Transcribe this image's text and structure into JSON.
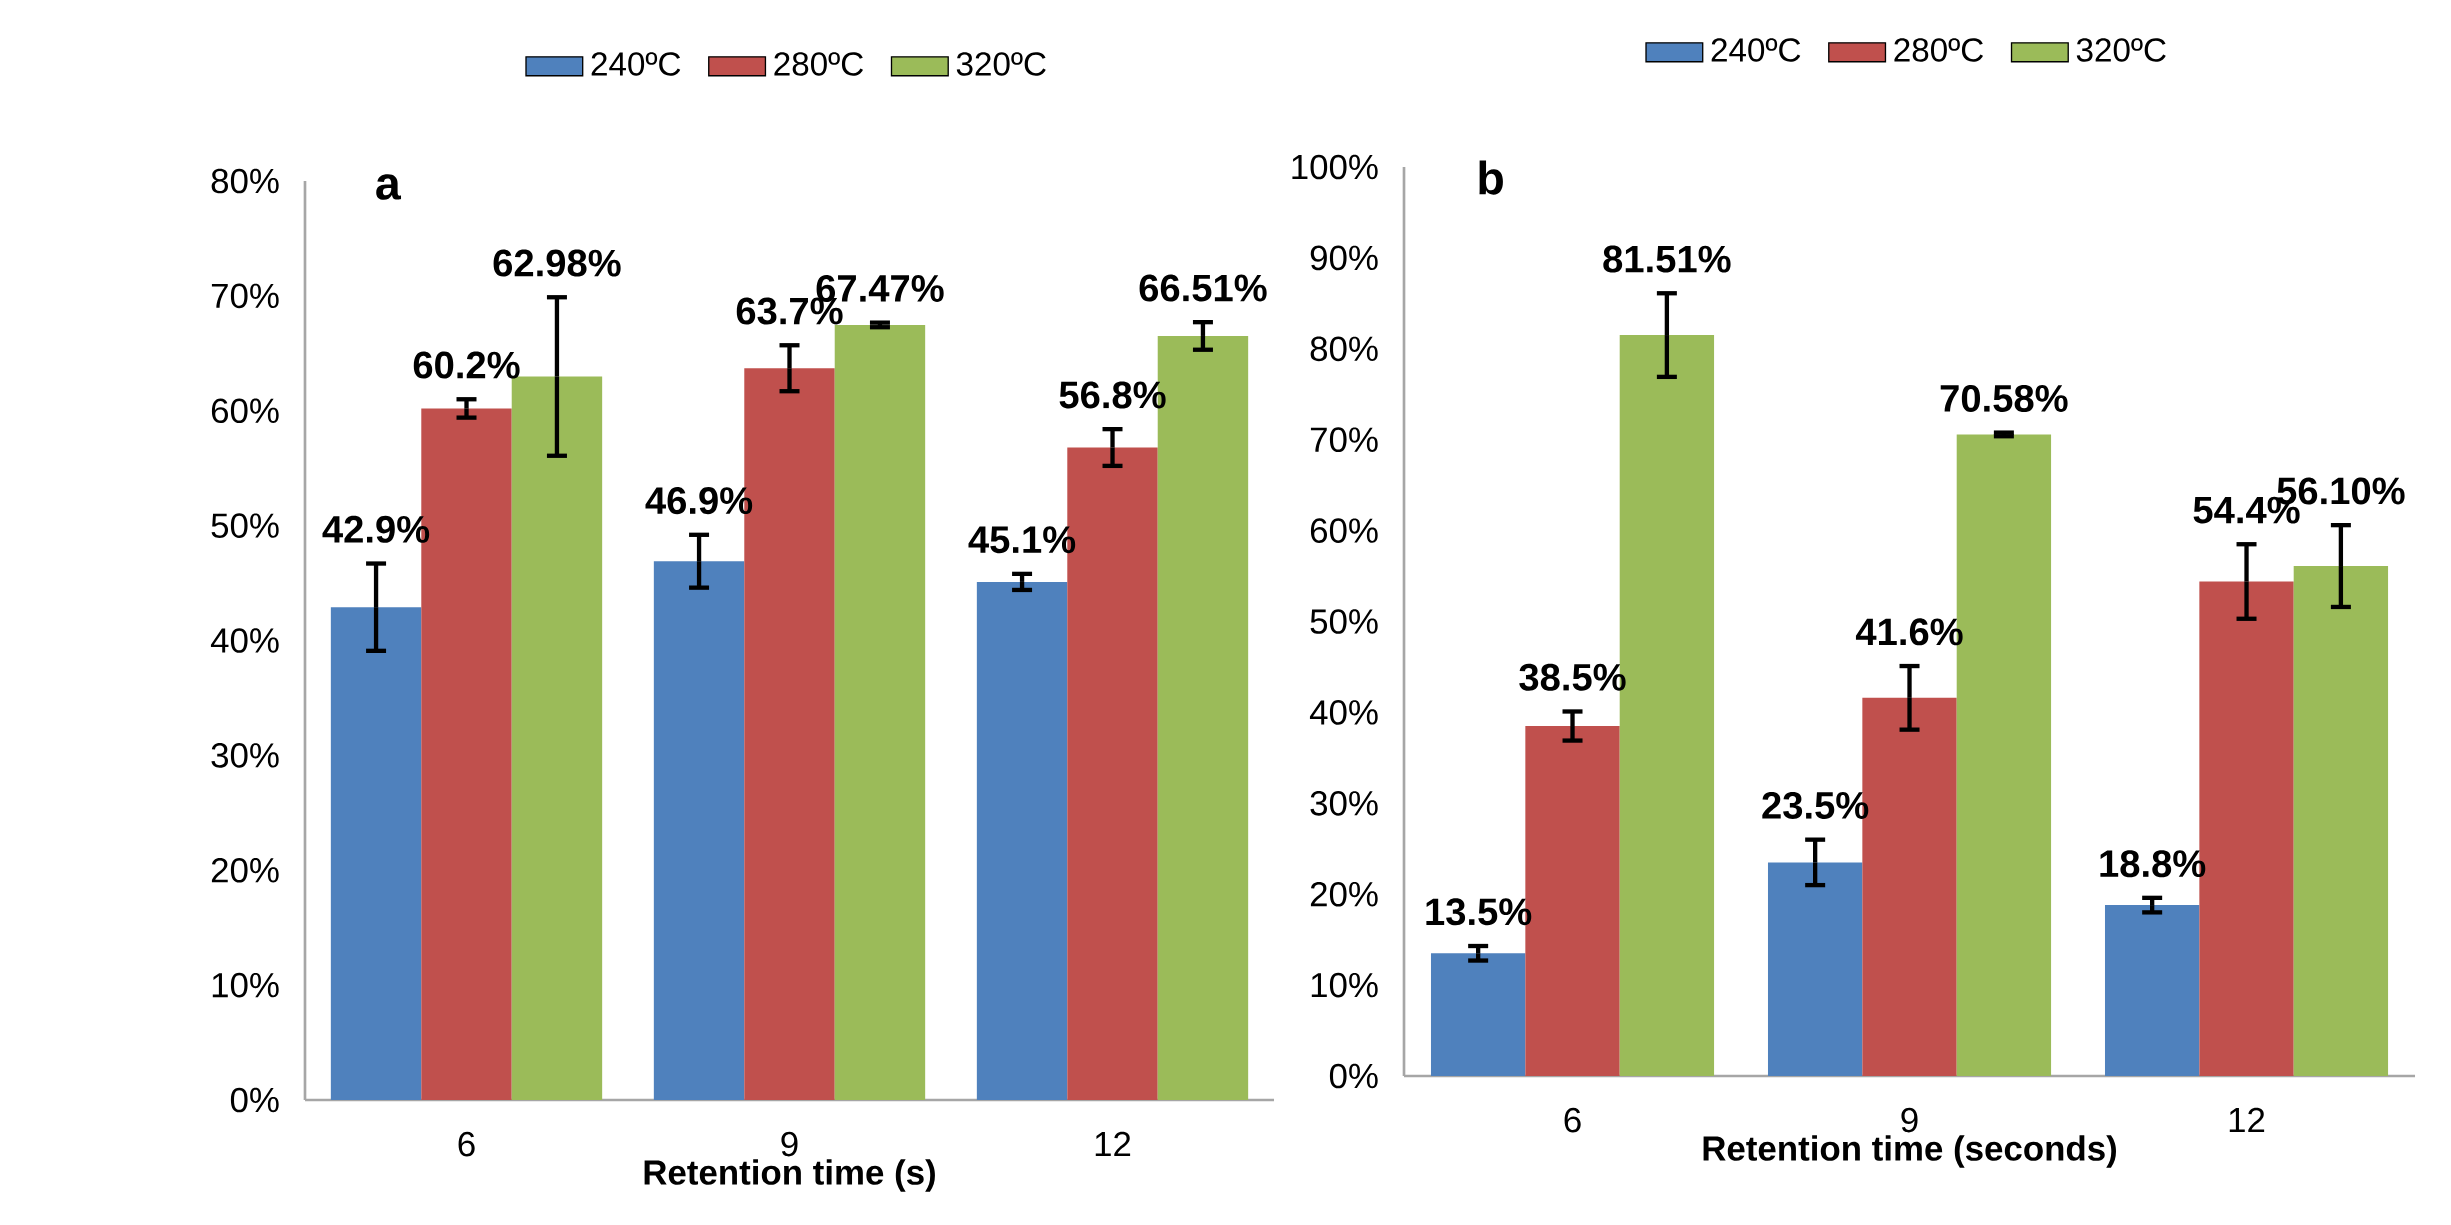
{
  "chart_data": [
    {
      "type": "bar",
      "title": "a",
      "xlabel": "Retention time (s)",
      "categories": [
        "6",
        "9",
        "12"
      ],
      "legend": "top",
      "ylim": [
        0,
        80
      ],
      "yticks": [
        {
          "value": 0,
          "label": "0%"
        },
        {
          "value": 10,
          "label": "10%"
        },
        {
          "value": 20,
          "label": "20%"
        },
        {
          "value": 30,
          "label": "30%"
        },
        {
          "value": 40,
          "label": "40%"
        },
        {
          "value": 50,
          "label": "50%"
        },
        {
          "value": 60,
          "label": "60%"
        },
        {
          "value": 70,
          "label": "70%"
        },
        {
          "value": 80,
          "label": "80%"
        }
      ],
      "series": [
        {
          "name": "240ºC",
          "color": "#4f81bd",
          "values": [
            42.9,
            46.9,
            45.1
          ],
          "errors": [
            3.8,
            2.3,
            0.7
          ],
          "value_labels": [
            "42.9%",
            "46.9%",
            "45.1%"
          ]
        },
        {
          "name": "280ºC",
          "color": "#c0504d",
          "values": [
            60.2,
            63.7,
            56.8
          ],
          "errors": [
            0.8,
            2.0,
            1.6
          ],
          "value_labels": [
            "60.2%",
            "63.7%",
            "56.8%"
          ]
        },
        {
          "name": "320ºC",
          "color": "#9bbb59",
          "values": [
            62.98,
            67.47,
            66.51
          ],
          "errors": [
            6.9,
            0.2,
            1.2
          ],
          "value_labels": [
            "62.98%",
            "67.47%",
            "66.51%"
          ]
        }
      ]
    },
    {
      "type": "bar",
      "title": "b",
      "xlabel": "Retention time (seconds)",
      "categories": [
        "6",
        "9",
        "12"
      ],
      "legend": "top",
      "ylim": [
        0,
        100
      ],
      "yticks": [
        {
          "value": 0,
          "label": "0%"
        },
        {
          "value": 10,
          "label": "10%"
        },
        {
          "value": 20,
          "label": "20%"
        },
        {
          "value": 30,
          "label": "30%"
        },
        {
          "value": 40,
          "label": "40%"
        },
        {
          "value": 50,
          "label": "50%"
        },
        {
          "value": 60,
          "label": "60%"
        },
        {
          "value": 70,
          "label": "70%"
        },
        {
          "value": 80,
          "label": "80%"
        },
        {
          "value": 90,
          "label": "90%"
        },
        {
          "value": 100,
          "label": "100%"
        }
      ],
      "series": [
        {
          "name": "240ºC",
          "color": "#4f81bd",
          "values": [
            13.5,
            23.5,
            18.8
          ],
          "errors": [
            0.8,
            2.5,
            0.8
          ],
          "value_labels": [
            "13.5%",
            "23.5%",
            "18.8%"
          ]
        },
        {
          "name": "280ºC",
          "color": "#c0504d",
          "values": [
            38.5,
            41.6,
            54.4
          ],
          "errors": [
            1.6,
            3.5,
            4.1
          ],
          "value_labels": [
            "38.5%",
            "41.6%",
            "54.4%"
          ]
        },
        {
          "name": "320ºC",
          "color": "#9bbb59",
          "values": [
            81.51,
            70.58,
            56.1
          ],
          "errors": [
            4.6,
            0.2,
            4.5
          ],
          "value_labels": [
            "81.51%",
            "70.58%",
            "56.10%"
          ]
        }
      ]
    }
  ]
}
